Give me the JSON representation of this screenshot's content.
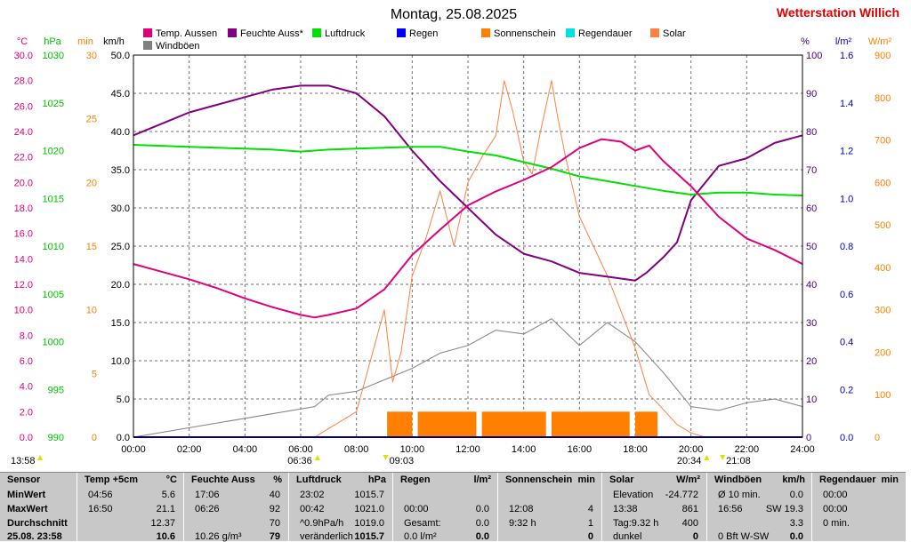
{
  "page": {
    "title": "Montag, 25.08.2025",
    "station": "Wetterstation Willich"
  },
  "axes": {
    "temp": {
      "unit": "°C",
      "color": "#e0007a",
      "min": 0,
      "max": 30,
      "step": 2,
      "decimals": 1
    },
    "press": {
      "unit": "hPa",
      "color": "#00c000",
      "min": 990,
      "max": 1030,
      "step": 5,
      "decimals": 0
    },
    "min": {
      "unit": "min",
      "color": "#ff8000",
      "min": 0,
      "max": 30,
      "step": 5,
      "decimals": 0
    },
    "kmh": {
      "unit": "km/h",
      "color": "#000000",
      "min": 0,
      "max": 50,
      "step": 5,
      "decimals": 1
    },
    "pct": {
      "unit": "%",
      "color": "#400080",
      "min": 0,
      "max": 100,
      "step": 10,
      "decimals": 0
    },
    "rain": {
      "unit": "l/m²",
      "color": "#0000c0",
      "min": 0,
      "max": 1.6,
      "step": 0.2,
      "decimals": 1
    },
    "solar": {
      "unit": "W/m²",
      "color": "#ff8000",
      "min": 0,
      "max": 900,
      "step": 100,
      "decimals": 0
    }
  },
  "time_ticks": [
    "00:00",
    "02:00",
    "04:00",
    "06:00",
    "08:00",
    "10:00",
    "12:00",
    "14:00",
    "16:00",
    "18:00",
    "20:00",
    "22:00",
    "24:00"
  ],
  "legend": [
    {
      "label": "Temp. Aussen",
      "color": "#e0007a"
    },
    {
      "label": "Feuchte Auss*",
      "color": "#800080"
    },
    {
      "label": "Luftdruck",
      "color": "#00e000"
    },
    {
      "label": "Regen",
      "color": "#0000ff"
    },
    {
      "label": "Sonnenschein",
      "color": "#ff8000"
    },
    {
      "label": "Regendauer",
      "color": "#00e0e0"
    },
    {
      "label": "Solar",
      "color": "#ff8040"
    },
    {
      "label": "Windböen",
      "color": "#808080"
    }
  ],
  "markers": {
    "sunrise": "06:36",
    "sunset": "20:34",
    "sun_start": "09:03",
    "sun_end": "21:08",
    "left_time": "13:58"
  },
  "chart_data": {
    "type": "line",
    "x_unit": "hour of day",
    "xlim": [
      0,
      24
    ],
    "series": [
      {
        "name": "Temp. Aussen",
        "axis": "temp",
        "color": "#e0007a",
        "x": [
          0,
          1,
          2,
          3,
          4,
          5,
          6,
          6.5,
          7,
          8,
          9,
          10,
          11,
          12,
          13,
          14,
          15,
          16,
          16.8,
          17.5,
          18,
          18.5,
          19,
          20,
          21,
          22,
          23,
          24
        ],
        "y": [
          13.6,
          13.0,
          12.4,
          11.7,
          10.9,
          10.2,
          9.6,
          9.4,
          9.6,
          10.1,
          11.6,
          14.3,
          16.3,
          18.2,
          19.3,
          20.2,
          21.2,
          22.7,
          23.4,
          23.2,
          22.5,
          22.9,
          21.7,
          19.7,
          17.3,
          15.6,
          14.7,
          13.6
        ]
      },
      {
        "name": "Feuchte Auss*",
        "axis": "pct",
        "color": "#800080",
        "x": [
          0,
          1,
          2,
          3,
          4,
          5,
          6,
          6.5,
          7,
          8,
          9,
          10,
          11,
          12,
          13,
          14,
          15,
          16,
          17,
          18,
          18.4,
          19,
          19.5,
          20,
          21,
          22,
          23,
          24
        ],
        "y": [
          79,
          82,
          85,
          87,
          89,
          91,
          92,
          92,
          92,
          90,
          84,
          75,
          67,
          60,
          53,
          48,
          46,
          43,
          42,
          41,
          43,
          47,
          51,
          62,
          71,
          73,
          77,
          79
        ]
      },
      {
        "name": "Luftdruck",
        "axis": "press",
        "color": "#00e000",
        "x": [
          0,
          1,
          2,
          3,
          4,
          5,
          6,
          7,
          8,
          9,
          10,
          11,
          12,
          13,
          14,
          15,
          16,
          17,
          18,
          19,
          20,
          21,
          22,
          23,
          24
        ],
        "y": [
          1020.6,
          1020.5,
          1020.4,
          1020.3,
          1020.2,
          1020.1,
          1019.9,
          1020.1,
          1020.2,
          1020.3,
          1020.4,
          1020.4,
          1019.9,
          1019.5,
          1018.8,
          1018.1,
          1017.3,
          1016.8,
          1016.3,
          1015.8,
          1015.4,
          1015.6,
          1015.6,
          1015.4,
          1015.3
        ]
      },
      {
        "name": "Solar",
        "axis": "solar",
        "color": "#ff8040",
        "x": [
          6.5,
          7,
          8,
          9,
          9.3,
          9.6,
          9.8,
          10,
          10.5,
          11,
          11.5,
          12,
          12.5,
          13,
          13.3,
          13.6,
          14,
          14.3,
          14.6,
          15,
          15.2,
          15.5,
          16,
          17,
          18,
          18.5,
          18.8,
          19.5,
          20,
          20.5
        ],
        "y": [
          0,
          20,
          60,
          300,
          130,
          200,
          290,
          380,
          470,
          580,
          450,
          600,
          660,
          710,
          840,
          770,
          650,
          620,
          720,
          840,
          760,
          660,
          520,
          380,
          210,
          100,
          80,
          30,
          10,
          0
        ]
      },
      {
        "name": "Regen",
        "axis": "rain",
        "color": "#0000ff",
        "x": [
          0,
          24
        ],
        "y": [
          0,
          0
        ]
      },
      {
        "name": "Windböen",
        "axis": "kmh",
        "color": "#808080",
        "x": [
          0,
          6.5,
          7,
          8,
          9,
          10,
          11,
          12,
          13,
          14,
          15,
          16,
          17,
          18,
          19,
          20,
          21,
          22,
          23,
          24
        ],
        "y": [
          0,
          4,
          5.5,
          6,
          7.5,
          9,
          11,
          12,
          14,
          13.5,
          15.5,
          12,
          15,
          12.5,
          8.5,
          4,
          3.5,
          4.5,
          5,
          4
        ]
      },
      {
        "name": "Sonnenschein",
        "axis": "min",
        "color": "#ff8000",
        "bar": true,
        "x": [
          9.1,
          10.2,
          12.5,
          15.0,
          18.0
        ],
        "x_end": [
          10.0,
          12.3,
          14.8,
          17.8,
          18.8
        ],
        "y": [
          2,
          2,
          2,
          2,
          2
        ]
      }
    ]
  },
  "stats": {
    "columns": [
      {
        "header": "Sensor",
        "rows": [
          "MinWert",
          "MaxWert",
          "Durchschnitt",
          "25.08. 23:58"
        ]
      },
      {
        "header": "Temp +5cm",
        "unit": "°C",
        "rows": [
          [
            "04:56",
            "5.6"
          ],
          [
            "16:50",
            "21.1"
          ],
          [
            "",
            "12.37"
          ],
          [
            "",
            "10.6"
          ]
        ]
      },
      {
        "header": "Feuchte Auss",
        "unit": "%",
        "rows": [
          [
            "17:06",
            "40"
          ],
          [
            "06:26",
            "92"
          ],
          [
            "",
            "70"
          ],
          [
            "10.26 g/m³",
            "79"
          ]
        ]
      },
      {
        "header": "Luftdruck",
        "unit": "hPa",
        "rows": [
          [
            "23:02",
            "1015.7"
          ],
          [
            "00:42",
            "1021.0"
          ],
          [
            "^0.9hPa/h",
            "1019.0"
          ],
          [
            "veränderlich",
            "1015.7"
          ]
        ]
      },
      {
        "header": "Regen",
        "unit": "l/m²",
        "rows": [
          [
            "",
            ""
          ],
          [
            "00:00",
            "0.0"
          ],
          [
            "Gesamt:",
            "0.0"
          ],
          [
            "0.0 l/m²",
            "0.0"
          ]
        ]
      },
      {
        "header": "Sonnenschein",
        "unit": "min",
        "rows": [
          [
            "",
            ""
          ],
          [
            "12:08",
            "4"
          ],
          [
            "9:32 h",
            "1"
          ],
          [
            "",
            "0"
          ]
        ]
      },
      {
        "header": "Solar",
        "unit": "W/m²",
        "rows": [
          [
            "Elevation",
            "-24.772"
          ],
          [
            "13:38",
            "861"
          ],
          [
            "Tag:9.32 h",
            "400"
          ],
          [
            "dunkel",
            "0"
          ]
        ]
      },
      {
        "header": "Windböen",
        "unit": "km/h",
        "rows": [
          [
            "Ø 10 min.",
            "0.0"
          ],
          [
            "16:56",
            "SW 19.3"
          ],
          [
            "",
            "3.3"
          ],
          [
            "0 Bft W-SW",
            "0.0"
          ]
        ]
      },
      {
        "header": "Regendauer",
        "unit": "min",
        "rows": [
          [
            "00:00",
            ""
          ],
          [
            "00:00",
            ""
          ],
          [
            "0 min.",
            ""
          ],
          [
            "",
            ""
          ]
        ]
      }
    ]
  }
}
